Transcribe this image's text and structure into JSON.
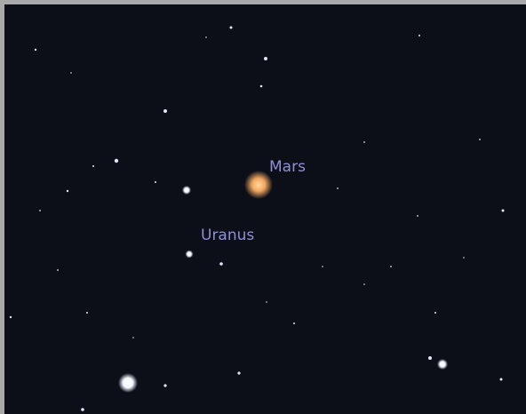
{
  "labels": {
    "mars": "Mars",
    "uranus": "Uranus"
  }
}
